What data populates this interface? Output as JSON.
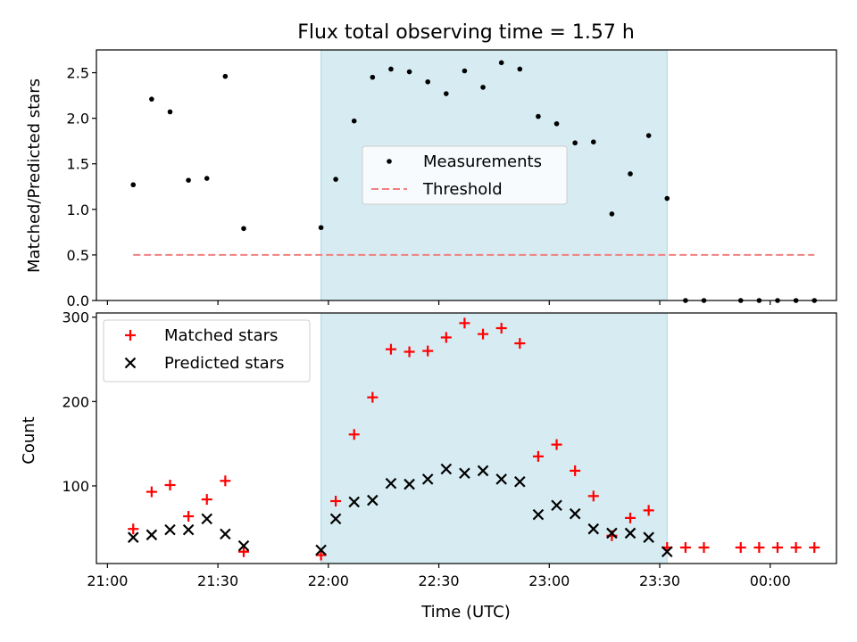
{
  "chart_data": [
    {
      "type": "scatter",
      "title": "Flux total observing time = 1.57 h",
      "ylabel": "Matched/Predicted stars",
      "xlabel": "",
      "xlim_minutes": [
        1257,
        1458
      ],
      "ylim": [
        0,
        2.75
      ],
      "y_ticks": [
        "0.0",
        "0.5",
        "1.0",
        "1.5",
        "2.0",
        "2.5"
      ],
      "shaded_region": {
        "start": "21:58",
        "end": "23:32",
        "color": "#add8e6"
      },
      "legend": {
        "placement": "center",
        "entries": [
          {
            "label": "Measurements",
            "marker": "dot"
          },
          {
            "label": "Threshold",
            "marker": "dash"
          }
        ]
      },
      "series": [
        {
          "name": "Measurements",
          "color": "#000000",
          "marker": "dot",
          "points": [
            [
              "21:07",
              1.27
            ],
            [
              "21:12",
              2.21
            ],
            [
              "21:17",
              2.07
            ],
            [
              "21:22",
              1.32
            ],
            [
              "21:27",
              1.34
            ],
            [
              "21:32",
              2.46
            ],
            [
              "21:37",
              0.79
            ],
            [
              "21:58",
              0.8
            ],
            [
              "22:02",
              1.33
            ],
            [
              "22:07",
              1.97
            ],
            [
              "22:12",
              2.45
            ],
            [
              "22:17",
              2.54
            ],
            [
              "22:22",
              2.51
            ],
            [
              "22:27",
              2.4
            ],
            [
              "22:32",
              2.27
            ],
            [
              "22:37",
              2.52
            ],
            [
              "22:42",
              2.34
            ],
            [
              "22:47",
              2.61
            ],
            [
              "22:52",
              2.54
            ],
            [
              "22:57",
              2.02
            ],
            [
              "23:02",
              1.94
            ],
            [
              "23:07",
              1.73
            ],
            [
              "23:12",
              1.74
            ],
            [
              "23:17",
              0.95
            ],
            [
              "23:22",
              1.39
            ],
            [
              "23:27",
              1.81
            ],
            [
              "23:32",
              1.12
            ],
            [
              "23:37",
              0.0
            ],
            [
              "23:42",
              0.0
            ],
            [
              "23:52",
              0.0
            ],
            [
              "23:57",
              0.0
            ],
            [
              "00:02",
              0.0
            ],
            [
              "00:07",
              0.0
            ],
            [
              "00:12",
              0.0
            ]
          ]
        },
        {
          "name": "Threshold",
          "color": "#f08080",
          "line": "dashed",
          "points": [
            [
              "21:07",
              0.5
            ],
            [
              "00:12",
              0.5
            ]
          ]
        }
      ]
    },
    {
      "type": "scatter",
      "title": "",
      "ylabel": "Count",
      "xlabel": "Time (UTC)",
      "xlim_minutes": [
        1257,
        1458
      ],
      "ylim": [
        8,
        305
      ],
      "y_ticks": [
        "100",
        "200",
        "300"
      ],
      "x_ticks": [
        "21:00",
        "21:30",
        "22:00",
        "22:30",
        "23:00",
        "23:30",
        "00:00"
      ],
      "shaded_region": {
        "start": "21:58",
        "end": "23:32",
        "color": "#add8e6"
      },
      "legend": {
        "placement": "upper left",
        "entries": [
          {
            "label": "Matched stars",
            "marker": "plus"
          },
          {
            "label": "Predicted stars",
            "marker": "x"
          }
        ]
      },
      "series": [
        {
          "name": "Matched stars",
          "color": "#ff0000",
          "marker": "plus",
          "points": [
            [
              "21:07",
              49
            ],
            [
              "21:12",
              93
            ],
            [
              "21:17",
              101
            ],
            [
              "21:22",
              64
            ],
            [
              "21:27",
              84
            ],
            [
              "21:32",
              106
            ],
            [
              "21:37",
              22
            ],
            [
              "21:58",
              18
            ],
            [
              "22:02",
              82
            ],
            [
              "22:07",
              161
            ],
            [
              "22:12",
              205
            ],
            [
              "22:17",
              262
            ],
            [
              "22:22",
              259
            ],
            [
              "22:27",
              260
            ],
            [
              "22:32",
              276
            ],
            [
              "22:37",
              293
            ],
            [
              "22:42",
              280
            ],
            [
              "22:47",
              287
            ],
            [
              "22:52",
              269
            ],
            [
              "22:57",
              135
            ],
            [
              "23:02",
              149
            ],
            [
              "23:07",
              118
            ],
            [
              "23:12",
              88
            ],
            [
              "23:17",
              41
            ],
            [
              "23:22",
              62
            ],
            [
              "23:27",
              71
            ],
            [
              "23:32",
              27
            ],
            [
              "23:37",
              27
            ],
            [
              "23:42",
              27
            ],
            [
              "23:52",
              27
            ],
            [
              "23:57",
              27
            ],
            [
              "00:02",
              27
            ],
            [
              "00:07",
              27
            ],
            [
              "00:12",
              27
            ]
          ]
        },
        {
          "name": "Predicted stars",
          "color": "#000000",
          "marker": "x",
          "points": [
            [
              "21:07",
              39
            ],
            [
              "21:12",
              42
            ],
            [
              "21:17",
              48
            ],
            [
              "21:22",
              48
            ],
            [
              "21:27",
              61
            ],
            [
              "21:32",
              43
            ],
            [
              "21:37",
              29
            ],
            [
              "21:58",
              24
            ],
            [
              "22:02",
              61
            ],
            [
              "22:07",
              81
            ],
            [
              "22:12",
              83
            ],
            [
              "22:17",
              103
            ],
            [
              "22:22",
              102
            ],
            [
              "22:27",
              108
            ],
            [
              "22:32",
              120
            ],
            [
              "22:37",
              115
            ],
            [
              "22:42",
              118
            ],
            [
              "22:47",
              108
            ],
            [
              "22:52",
              105
            ],
            [
              "22:57",
              66
            ],
            [
              "23:02",
              77
            ],
            [
              "23:07",
              67
            ],
            [
              "23:12",
              49
            ],
            [
              "23:17",
              44
            ],
            [
              "23:22",
              44
            ],
            [
              "23:27",
              39
            ],
            [
              "23:32",
              22
            ]
          ]
        }
      ]
    }
  ]
}
